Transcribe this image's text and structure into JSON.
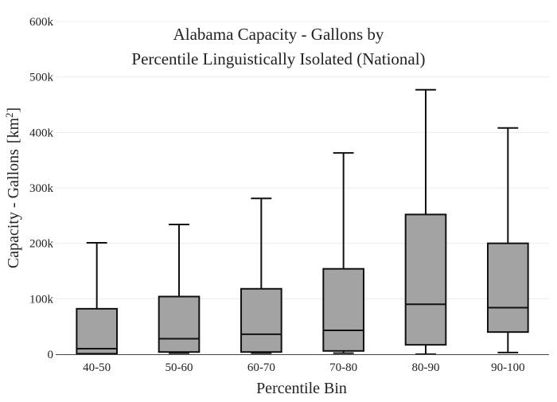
{
  "chart_data": {
    "type": "box",
    "title_lines": [
      "Alabama Capacity - Gallons by",
      "Percentile Linguistically Isolated (National)"
    ],
    "xlabel": "Percentile Bin",
    "ylabel": "Capacity - Gallons",
    "ylabel_unit_base": "[km",
    "ylabel_unit_sup": "2",
    "ylabel_unit_close": "]",
    "ylim": [
      0,
      600000
    ],
    "yticks": [
      0,
      100000,
      200000,
      300000,
      400000,
      500000,
      600000
    ],
    "ytick_labels": [
      "0",
      "100k",
      "200k",
      "300k",
      "400k",
      "500k",
      "600k"
    ],
    "grid": true,
    "categories": [
      "40-50",
      "50-60",
      "60-70",
      "70-80",
      "80-90",
      "90-100"
    ],
    "boxes": [
      {
        "category": "40-50",
        "min": 0,
        "q1": 1000,
        "median": 10000,
        "q3": 82000,
        "max": 201000
      },
      {
        "category": "50-60",
        "min": 2000,
        "q1": 4000,
        "median": 28000,
        "q3": 104000,
        "max": 234000
      },
      {
        "category": "60-70",
        "min": 2000,
        "q1": 4000,
        "median": 36000,
        "q3": 118000,
        "max": 281000
      },
      {
        "category": "70-80",
        "min": 2000,
        "q1": 6000,
        "median": 43000,
        "q3": 154000,
        "max": 363000
      },
      {
        "category": "80-90",
        "min": 0,
        "q1": 17000,
        "median": 90000,
        "q3": 252000,
        "max": 477000
      },
      {
        "category": "90-100",
        "min": 3000,
        "q1": 40000,
        "median": 84000,
        "q3": 200000,
        "max": 408000
      }
    ],
    "colors": {
      "box_fill": "#a3a3a3",
      "line": "#111111",
      "grid": "#ececec",
      "axis": "#444444"
    }
  }
}
